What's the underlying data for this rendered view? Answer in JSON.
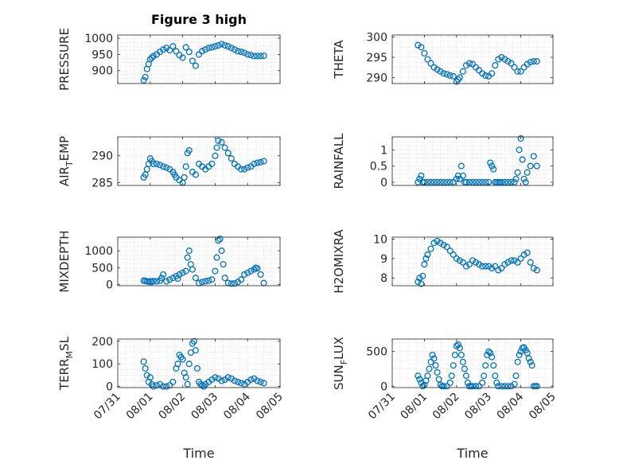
{
  "figure": {
    "title": "Figure 3 high",
    "xlabel": "Time"
  },
  "colors": {
    "marker": "#0072BD",
    "axis": "#262626",
    "grid": "#d9d9d9"
  },
  "chart_data": [
    {
      "type": "scatter",
      "id": "pressure",
      "ylabel": "PRESSURE",
      "title": "Figure 3 high",
      "xlabel": "",
      "ylim": [
        860,
        1010
      ],
      "yticks": [
        900,
        950,
        1000
      ],
      "xlim": [
        "07/31",
        "08/05"
      ],
      "xticklabels": [],
      "grid": true,
      "x": [
        0.8,
        0.85,
        0.9,
        0.95,
        1.0,
        1.05,
        1.1,
        1.2,
        1.3,
        1.4,
        1.5,
        1.6,
        1.7,
        1.8,
        1.9,
        2.0,
        2.1,
        2.2,
        2.3,
        2.4,
        2.5,
        2.6,
        2.7,
        2.8,
        2.9,
        3.0,
        3.1,
        3.2,
        3.3,
        3.4,
        3.5,
        3.6,
        3.7,
        3.8,
        3.9,
        4.0,
        4.1,
        4.2,
        4.3,
        4.4,
        4.5
      ],
      "y": [
        870,
        880,
        905,
        920,
        935,
        940,
        945,
        950,
        958,
        965,
        970,
        963,
        975,
        960,
        948,
        940,
        972,
        958,
        930,
        915,
        950,
        960,
        965,
        970,
        972,
        975,
        978,
        982,
        978,
        975,
        970,
        965,
        960,
        958,
        955,
        950,
        948,
        945,
        945,
        945,
        946
      ]
    },
    {
      "type": "scatter",
      "id": "theta",
      "ylabel": "THETA",
      "ylim": [
        288.5,
        300.5
      ],
      "yticks": [
        290,
        295,
        300
      ],
      "xlim": [
        "07/31",
        "08/05"
      ],
      "xticklabels": [],
      "grid": true,
      "x": [
        0.8,
        0.9,
        1.0,
        1.1,
        1.2,
        1.3,
        1.4,
        1.5,
        1.6,
        1.7,
        1.8,
        1.9,
        2.0,
        2.05,
        2.1,
        2.2,
        2.3,
        2.4,
        2.5,
        2.6,
        2.7,
        2.8,
        2.9,
        3.0,
        3.1,
        3.2,
        3.3,
        3.4,
        3.5,
        3.6,
        3.7,
        3.8,
        3.9,
        4.0,
        4.1,
        4.2,
        4.3,
        4.4,
        4.5
      ],
      "y": [
        298,
        297.5,
        296,
        294.5,
        293.5,
        292.5,
        292,
        291.5,
        291,
        290.8,
        290.5,
        290.3,
        289,
        289.5,
        290,
        291.5,
        293,
        293.5,
        293.3,
        292.5,
        291.8,
        291,
        290.5,
        290.3,
        291,
        293,
        294.5,
        295,
        294.5,
        294,
        293.5,
        292.5,
        291.5,
        291.5,
        292.5,
        293.3,
        293.8,
        294,
        294
      ]
    },
    {
      "type": "scatter",
      "id": "air_temp",
      "ylabel": "AIR_TEMP",
      "ylabel_parts": [
        "AIR",
        "T",
        "EMP"
      ],
      "ylim": [
        284.5,
        293.5
      ],
      "yticks": [
        285,
        290
      ],
      "xlim": [
        "07/31",
        "08/05"
      ],
      "xticklabels": [],
      "grid": true,
      "x": [
        0.8,
        0.85,
        0.9,
        0.95,
        1.0,
        1.05,
        1.1,
        1.2,
        1.3,
        1.4,
        1.5,
        1.6,
        1.7,
        1.75,
        1.8,
        1.9,
        2.0,
        2.05,
        2.1,
        2.15,
        2.2,
        2.3,
        2.4,
        2.5,
        2.6,
        2.7,
        2.8,
        2.9,
        3.0,
        3.05,
        3.1,
        3.2,
        3.3,
        3.4,
        3.5,
        3.6,
        3.7,
        3.8,
        3.9,
        4.0,
        4.1,
        4.2,
        4.3,
        4.4,
        4.5
      ],
      "y": [
        286,
        286.5,
        287.5,
        288.5,
        289.5,
        289,
        288.5,
        288.5,
        288.3,
        288,
        287.8,
        287.5,
        287,
        286.5,
        286,
        285.5,
        285,
        286,
        288,
        290.5,
        291,
        287,
        286.5,
        288.5,
        288,
        287.5,
        288,
        288.5,
        290,
        291.5,
        292.8,
        292.5,
        291.5,
        290.5,
        289.5,
        288.5,
        288,
        287.5,
        287.5,
        287.8,
        288,
        288.5,
        288.7,
        288.8,
        289
      ]
    },
    {
      "type": "scatter",
      "id": "rainfall",
      "ylabel": "RAINFALL",
      "ylim": [
        -0.1,
        1.4
      ],
      "yticks": [
        0,
        0.5,
        1
      ],
      "yticklabels": [
        "0",
        "0.5",
        "1"
      ],
      "xlim": [
        "07/31",
        "08/05"
      ],
      "xticklabels": [],
      "grid": true,
      "x": [
        0.8,
        0.85,
        0.9,
        0.95,
        1.0,
        1.1,
        1.2,
        1.3,
        1.4,
        1.5,
        1.6,
        1.7,
        1.8,
        1.9,
        2.0,
        2.05,
        2.1,
        2.15,
        2.2,
        2.25,
        2.3,
        2.4,
        2.5,
        2.6,
        2.7,
        2.8,
        2.9,
        3.0,
        3.05,
        3.1,
        3.15,
        3.2,
        3.25,
        3.3,
        3.35,
        3.4,
        3.5,
        3.6,
        3.7,
        3.8,
        3.85,
        3.9,
        3.95,
        4.0,
        4.05,
        4.1,
        4.15,
        4.2,
        4.3,
        4.4,
        4.5
      ],
      "y": [
        0,
        0.1,
        0.2,
        0,
        0,
        0,
        0,
        0,
        0,
        0,
        0,
        0,
        0,
        0,
        0.1,
        0.2,
        0.1,
        0.5,
        0.2,
        0,
        0,
        0,
        0,
        0,
        0,
        0,
        0,
        0,
        0.6,
        0.5,
        0.4,
        0,
        0,
        0,
        0,
        0,
        0,
        0,
        0,
        0,
        0.1,
        0.3,
        1.0,
        1.35,
        0.7,
        0.1,
        0,
        0.3,
        0.5,
        0.8,
        0.5
      ]
    },
    {
      "type": "scatter",
      "id": "mixdepth",
      "ylabel": "MIXDEPTH",
      "ylim": [
        -30,
        1400
      ],
      "yticks": [
        0,
        500,
        1000
      ],
      "xlim": [
        "07/31",
        "08/05"
      ],
      "xticklabels": [],
      "grid": true,
      "x": [
        0.8,
        0.85,
        0.9,
        0.95,
        1.0,
        1.05,
        1.1,
        1.2,
        1.3,
        1.35,
        1.4,
        1.5,
        1.6,
        1.7,
        1.8,
        1.85,
        1.9,
        2.0,
        2.1,
        2.15,
        2.2,
        2.25,
        2.3,
        2.4,
        2.5,
        2.6,
        2.7,
        2.8,
        2.9,
        3.0,
        3.05,
        3.1,
        3.15,
        3.2,
        3.25,
        3.3,
        3.4,
        3.5,
        3.6,
        3.7,
        3.8,
        3.9,
        4.0,
        4.1,
        4.2,
        4.25,
        4.3,
        4.4,
        4.5
      ],
      "y": [
        120,
        110,
        100,
        90,
        100,
        80,
        110,
        100,
        120,
        200,
        300,
        100,
        150,
        200,
        250,
        180,
        300,
        350,
        400,
        800,
        1000,
        600,
        450,
        200,
        50,
        80,
        100,
        120,
        150,
        400,
        800,
        1300,
        1350,
        1000,
        600,
        200,
        50,
        30,
        40,
        80,
        150,
        300,
        350,
        400,
        450,
        500,
        480,
        300,
        50
      ]
    },
    {
      "type": "scatter",
      "id": "h2omixra",
      "ylabel": "H2OMIXRA",
      "ylim": [
        7.6,
        10.1
      ],
      "yticks": [
        8,
        9,
        10
      ],
      "xlim": [
        "07/31",
        "08/05"
      ],
      "xticklabels": [],
      "grid": true,
      "x": [
        0.8,
        0.85,
        0.9,
        0.95,
        1.0,
        1.05,
        1.1,
        1.2,
        1.3,
        1.4,
        1.5,
        1.6,
        1.7,
        1.8,
        1.9,
        2.0,
        2.1,
        2.2,
        2.3,
        2.4,
        2.5,
        2.6,
        2.7,
        2.8,
        2.9,
        3.0,
        3.1,
        3.2,
        3.3,
        3.4,
        3.5,
        3.6,
        3.7,
        3.8,
        3.9,
        4.0,
        4.1,
        4.2,
        4.3,
        4.4,
        4.5
      ],
      "y": [
        7.8,
        8.0,
        7.7,
        8.1,
        8.7,
        9.0,
        9.2,
        9.5,
        9.8,
        9.9,
        9.8,
        9.7,
        9.6,
        9.4,
        9.2,
        9.0,
        8.9,
        8.8,
        8.6,
        8.7,
        8.9,
        8.8,
        8.7,
        8.6,
        8.6,
        8.6,
        8.5,
        8.6,
        8.4,
        8.5,
        8.7,
        8.8,
        8.9,
        8.9,
        8.8,
        9.0,
        9.2,
        9.3,
        8.8,
        8.5,
        8.4
      ]
    },
    {
      "type": "scatter",
      "id": "terr_msl",
      "ylabel": "TERR_MSL",
      "ylabel_parts": [
        "TERR",
        "M",
        "SL"
      ],
      "ylim": [
        -5,
        210
      ],
      "yticks": [
        0,
        100,
        200
      ],
      "xlim": [
        "07/31",
        "08/05"
      ],
      "xticklabels": [
        "07/31",
        "08/01",
        "08/02",
        "08/03",
        "08/04",
        "08/05"
      ],
      "grid": true,
      "x": [
        0.8,
        0.85,
        0.9,
        0.95,
        1.0,
        1.05,
        1.1,
        1.2,
        1.3,
        1.4,
        1.5,
        1.6,
        1.7,
        1.8,
        1.85,
        1.9,
        1.95,
        2.0,
        2.05,
        2.1,
        2.15,
        2.2,
        2.25,
        2.3,
        2.35,
        2.4,
        2.45,
        2.5,
        2.55,
        2.6,
        2.65,
        2.7,
        2.8,
        2.9,
        3.0,
        3.1,
        3.2,
        3.3,
        3.4,
        3.5,
        3.6,
        3.7,
        3.8,
        3.9,
        4.0,
        4.1,
        4.2,
        4.3,
        4.4,
        4.5
      ],
      "y": [
        110,
        80,
        50,
        20,
        40,
        10,
        0,
        5,
        10,
        0,
        0,
        5,
        20,
        80,
        100,
        140,
        130,
        120,
        60,
        40,
        10,
        100,
        150,
        190,
        200,
        160,
        80,
        20,
        10,
        5,
        0,
        10,
        20,
        30,
        40,
        35,
        25,
        30,
        40,
        35,
        25,
        20,
        15,
        10,
        20,
        30,
        35,
        25,
        20,
        15
      ]
    },
    {
      "type": "scatter",
      "id": "sun_flux",
      "ylabel": "SUN_FLUX",
      "ylabel_parts": [
        "SUN",
        "F",
        "LUX"
      ],
      "ylim": [
        -20,
        680
      ],
      "yticks": [
        0,
        500
      ],
      "xlim": [
        "07/31",
        "08/05"
      ],
      "xticklabels": [
        "07/31",
        "08/01",
        "08/02",
        "08/03",
        "08/04",
        "08/05"
      ],
      "grid": true,
      "x": [
        0.8,
        0.85,
        0.9,
        0.95,
        1.0,
        1.05,
        1.1,
        1.15,
        1.2,
        1.25,
        1.3,
        1.35,
        1.4,
        1.45,
        1.5,
        1.55,
        1.6,
        1.7,
        1.8,
        1.85,
        1.9,
        1.95,
        2.0,
        2.05,
        2.1,
        2.15,
        2.2,
        2.25,
        2.3,
        2.35,
        2.4,
        2.45,
        2.5,
        2.6,
        2.7,
        2.8,
        2.85,
        2.9,
        2.95,
        3.0,
        3.05,
        3.1,
        3.15,
        3.2,
        3.25,
        3.3,
        3.4,
        3.5,
        3.6,
        3.7,
        3.8,
        3.85,
        3.9,
        3.95,
        4.0,
        4.05,
        4.1,
        4.15,
        4.2,
        4.25,
        4.3,
        4.35,
        4.4,
        4.45,
        4.5
      ],
      "y": [
        150,
        100,
        50,
        0,
        20,
        80,
        150,
        250,
        350,
        450,
        400,
        300,
        200,
        100,
        20,
        0,
        0,
        0,
        50,
        150,
        300,
        450,
        580,
        600,
        550,
        450,
        350,
        250,
        150,
        50,
        0,
        0,
        0,
        0,
        0,
        50,
        150,
        300,
        450,
        500,
        480,
        420,
        300,
        150,
        50,
        0,
        0,
        0,
        0,
        0,
        30,
        150,
        350,
        450,
        500,
        550,
        560,
        520,
        480,
        400,
        350,
        300,
        0,
        0,
        0
      ]
    }
  ]
}
